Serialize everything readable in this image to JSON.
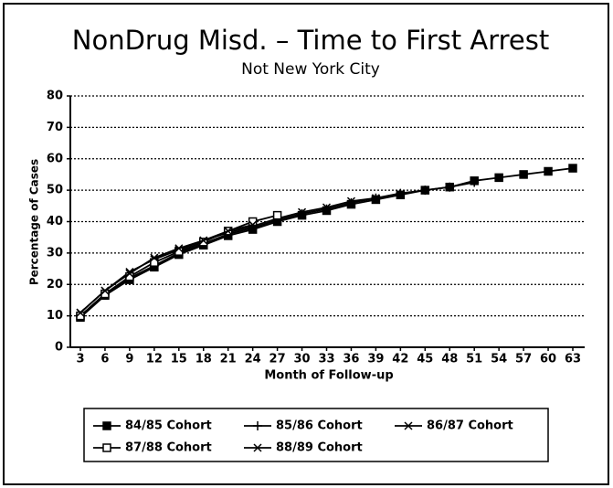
{
  "chart_data": {
    "type": "line",
    "title": "NonDrug Misd. – Time to First Arrest",
    "subtitle": "Not New York City",
    "x_label": "Month of Follow-up",
    "y_label": "Percentage of Cases",
    "categories": [
      3,
      6,
      9,
      12,
      15,
      18,
      21,
      24,
      27,
      30,
      33,
      36,
      39,
      42,
      45,
      48,
      51,
      54,
      57,
      60,
      63
    ],
    "ylim": [
      0,
      80
    ],
    "yticks": [
      0,
      10,
      20,
      30,
      40,
      50,
      60,
      70,
      80
    ],
    "grid": true,
    "series": [
      {
        "name": "84/85 Cohort",
        "color": "#000000",
        "marker": "filled-square",
        "values": [
          9.5,
          16.5,
          21.5,
          25.5,
          29.5,
          32.5,
          35.5,
          37.5,
          40,
          42,
          43.5,
          45.5,
          47,
          48.5,
          50,
          51,
          53,
          54,
          55,
          56,
          57
        ]
      },
      {
        "name": "85/86 Cohort",
        "color": "#000000",
        "marker": "plus",
        "values": [
          10,
          17,
          22,
          26,
          30,
          33,
          36,
          38,
          40.5,
          42.5,
          44,
          46,
          47.5,
          49,
          50,
          51,
          52.5,
          null,
          null,
          null,
          null
        ]
      },
      {
        "name": "86/87 Cohort",
        "color": "#000000",
        "marker": "cross",
        "values": [
          11,
          18,
          24,
          28,
          31,
          34,
          36.5,
          38.5,
          41,
          43,
          44.5,
          46.5,
          47.5,
          48.5,
          null,
          null,
          null,
          null,
          null,
          null,
          null
        ]
      },
      {
        "name": "87/88 Cohort",
        "color": "#000000",
        "marker": "open-square",
        "values": [
          10,
          17,
          22.5,
          27,
          30.5,
          33.5,
          37,
          40,
          42,
          null,
          null,
          null,
          null,
          null,
          null,
          null,
          null,
          null,
          null,
          null,
          null
        ]
      },
      {
        "name": "88/89 Cohort",
        "color": "#000000",
        "marker": "cross",
        "values": [
          11,
          18,
          23.5,
          28.5,
          31.5,
          34,
          37,
          39,
          null,
          null,
          null,
          null,
          null,
          null,
          null,
          null,
          null,
          null,
          null,
          null,
          null
        ]
      }
    ]
  }
}
